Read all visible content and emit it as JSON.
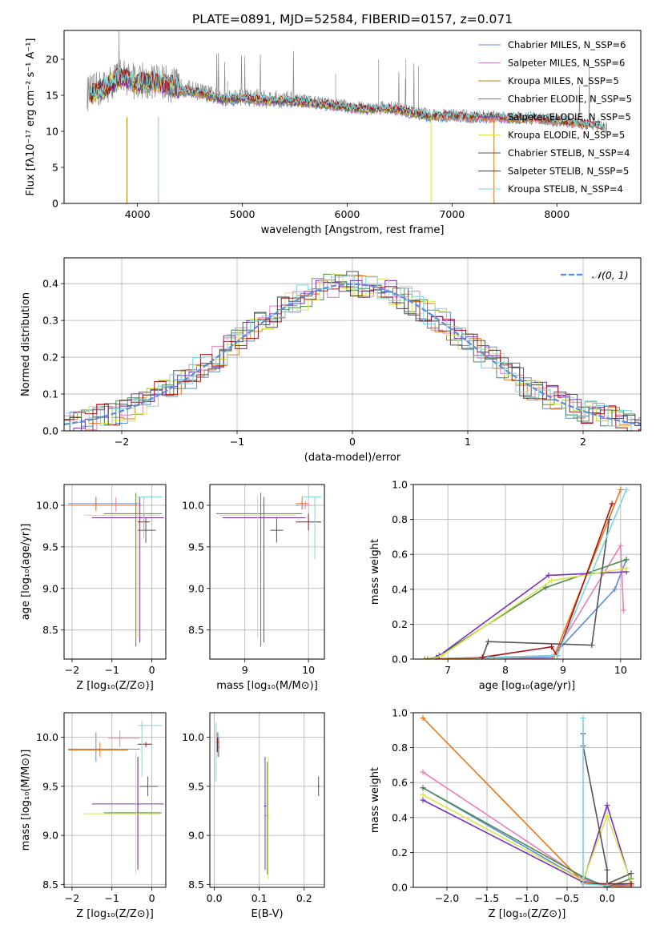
{
  "figure": {
    "title": "PLATE=0891, MJD=52584, FIBERID=0157, z=0.071"
  },
  "colors": {
    "chabrier_miles": "#5b8dd9",
    "salpeter_miles": "#e87fb7",
    "kroupa_miles": "#b8860b",
    "chabrier_elodie": "#4f8a4f",
    "salpeter_elodie": "#7b2fbf",
    "kroupa_elodie": "#d6e84a",
    "chabrier_stelib": "#555555",
    "salpeter_stelib": "#aa1111",
    "kroupa_stelib": "#7ad6dc",
    "orange": "#e8761a",
    "normal_curve": "#5b8dd9"
  },
  "chart_data": [
    {
      "id": "spectrum",
      "type": "line",
      "xlabel": "wavelength [Angstrom, rest frame]",
      "ylabel": "Flux [fλ10⁻¹⁷ erg cm⁻² s⁻¹ A⁻¹]",
      "xlim": [
        3300,
        8800
      ],
      "ylim": [
        0,
        24
      ],
      "xticks": [
        4000,
        5000,
        6000,
        7000,
        8000
      ],
      "yticks": [
        0,
        5,
        10,
        15,
        20
      ],
      "grid": false,
      "legend_placement": "top-right",
      "legend": [
        "Chabrier MILES, N_SSP=6",
        "Salpeter MILES, N_SSP=6",
        "Kroupa MILES, N_SSP=5",
        "Chabrier ELODIE, N_SSP=5",
        "Salpeter ELODIE, N_SSP=5",
        "Kroupa ELODIE, N_SSP=5",
        "Chabrier STELIB, N_SSP=4",
        "Salpeter STELIB, N_SSP=5",
        "Kroupa STELIB, N_SSP=4"
      ],
      "data_spectrum_envelope": {
        "x": [
          3550,
          3700,
          3850,
          4000,
          4200,
          4400,
          4600,
          4800,
          5000,
          5200,
          5400,
          5600,
          5800,
          6000,
          6200,
          6400,
          6600,
          6800,
          7000,
          7200,
          7400,
          7600,
          7800,
          8000,
          8200,
          8400,
          8500
        ],
        "y": [
          16.5,
          17.5,
          19.0,
          18.0,
          18.2,
          17.3,
          16.7,
          15.8,
          16.0,
          15.7,
          15.6,
          15.4,
          15.1,
          14.7,
          14.4,
          14.6,
          14.0,
          13.5,
          13.5,
          13.3,
          13.3,
          13.2,
          13.1,
          12.8,
          12.5,
          12.0,
          11.5
        ]
      }
    },
    {
      "id": "residual_histogram",
      "type": "line",
      "xlabel": "(data-model)/error",
      "ylabel": "Normed distribution",
      "xlim": [
        -2.5,
        2.5
      ],
      "ylim": [
        0,
        0.47
      ],
      "xticks": [
        -2,
        -1,
        0,
        1,
        2
      ],
      "yticks": [
        0.0,
        0.1,
        0.2,
        0.3,
        0.4
      ],
      "grid": true,
      "legend_placement": "top-right",
      "legend": [
        "𝒩(0, 1)"
      ],
      "normal_curve": {
        "mean": 0,
        "sigma": 1
      }
    },
    {
      "id": "age_vs_Z",
      "type": "scatter",
      "xlabel": "Z [log₁₀(Z/Z⊙)]",
      "ylabel": "age  [log₁₀(age/yr)]",
      "xlim": [
        -2.2,
        0.35
      ],
      "ylim": [
        8.15,
        10.25
      ],
      "xticks": [
        -2,
        -1,
        0
      ],
      "yticks": [
        8.5,
        9.0,
        9.5,
        10.0
      ],
      "grid": true
    },
    {
      "id": "age_vs_mass",
      "type": "scatter",
      "xlabel": "mass [log₁₀(M/M⊙)]",
      "ylabel": "",
      "xlim": [
        8.45,
        10.25
      ],
      "ylim": [
        8.15,
        10.25
      ],
      "xticks": [
        9,
        10
      ],
      "yticks": [
        8.5,
        9.0,
        9.5,
        10.0
      ],
      "grid": true
    },
    {
      "id": "mass_weight_vs_age",
      "type": "line",
      "xlabel": "age  [log₁₀(age/yr)]",
      "ylabel": "mass weight",
      "xlim": [
        6.4,
        10.35
      ],
      "ylim": [
        0,
        1.0
      ],
      "xticks": [
        7,
        8,
        9,
        10
      ],
      "yticks": [
        0.0,
        0.2,
        0.4,
        0.6,
        0.8,
        1.0
      ],
      "grid": true
    },
    {
      "id": "mass_vs_Z",
      "type": "scatter",
      "xlabel": "Z [log₁₀(Z/Z⊙)]",
      "ylabel": "mass [log₁₀(M/M⊙)]",
      "xlim": [
        -2.2,
        0.35
      ],
      "ylim": [
        8.47,
        10.25
      ],
      "xticks": [
        -2,
        -1,
        0
      ],
      "yticks": [
        8.5,
        9.0,
        9.5,
        10.0
      ],
      "grid": true
    },
    {
      "id": "mass_vs_ebv",
      "type": "scatter",
      "xlabel": "E(B-V)",
      "ylabel": "",
      "xlim": [
        -0.01,
        0.245
      ],
      "ylim": [
        8.47,
        10.25
      ],
      "xticks": [
        0.0,
        0.1,
        0.2
      ],
      "yticks": [
        8.5,
        9.0,
        9.5,
        10.0
      ],
      "grid": true
    },
    {
      "id": "mass_weight_vs_Z",
      "type": "line",
      "xlabel": "Z [log₁₀(Z/Z⊙)]",
      "ylabel": "mass weight",
      "xlim": [
        -2.42,
        0.42
      ],
      "ylim": [
        0,
        1.0
      ],
      "xticks": [
        -2.0,
        -1.5,
        -1.0,
        -0.5,
        0.0
      ],
      "yticks": [
        0.0,
        0.2,
        0.4,
        0.6,
        0.8,
        1.0
      ],
      "grid": true
    }
  ],
  "errorbars": {
    "age_vs_Z": [
      {
        "c": "chabrier_miles",
        "x": -1.4,
        "y": 10.02,
        "xl": -2.1,
        "xh": -0.3,
        "yl": 9.95,
        "yh": 10.1
      },
      {
        "c": "salpeter_miles",
        "x": -0.9,
        "y": 10.0,
        "xl": -1.6,
        "xh": -0.2,
        "yl": 9.92,
        "yh": 10.1
      },
      {
        "c": "orange",
        "x": -1.4,
        "y": 10.0,
        "xl": -2.1,
        "xh": -0.4,
        "yl": 9.93,
        "yh": 10.1
      },
      {
        "c": "chabrier_elodie",
        "x": -0.4,
        "y": 9.9,
        "xl": -1.2,
        "xh": 0.25,
        "yl": 8.3,
        "yh": 10.15
      },
      {
        "c": "salpeter_elodie",
        "x": -0.3,
        "y": 9.85,
        "xl": -1.5,
        "xh": 0.3,
        "yl": 8.35,
        "yh": 10.1
      },
      {
        "c": "kroupa_elodie",
        "x": -0.35,
        "y": 9.88,
        "xl": -1.7,
        "xh": 0.2,
        "yl": 8.4,
        "yh": 10.12
      },
      {
        "c": "chabrier_stelib",
        "x": -0.15,
        "y": 9.7,
        "xl": -0.35,
        "xh": 0.1,
        "yl": 9.55,
        "yh": 9.85
      },
      {
        "c": "salpeter_stelib",
        "x": -0.2,
        "y": 9.8,
        "xl": -0.35,
        "xh": -0.05,
        "yl": 9.7,
        "yh": 9.9
      },
      {
        "c": "kroupa_stelib",
        "x": -0.2,
        "y": 10.1,
        "xl": -0.35,
        "xh": 0.25,
        "yl": 9.6,
        "yh": 10.1
      }
    ],
    "age_vs_mass": [
      {
        "c": "chabrier_miles",
        "x": 9.9,
        "y": 10.0,
        "xl": 9.8,
        "xh": 10.0,
        "yl": 9.95,
        "yh": 10.05
      },
      {
        "c": "salpeter_miles",
        "x": 9.95,
        "y": 10.0,
        "xl": 9.85,
        "xh": 10.05,
        "yl": 9.95,
        "yh": 10.05
      },
      {
        "c": "orange",
        "x": 9.9,
        "y": 10.02,
        "xl": 9.8,
        "xh": 10.0,
        "yl": 9.95,
        "yh": 10.1
      },
      {
        "c": "chabrier_elodie",
        "x": 9.25,
        "y": 9.9,
        "xl": 8.55,
        "xh": 9.9,
        "yl": 8.3,
        "yh": 10.15
      },
      {
        "c": "salpeter_elodie",
        "x": 9.3,
        "y": 9.85,
        "xl": 8.65,
        "xh": 9.95,
        "yl": 8.35,
        "yh": 10.1
      },
      {
        "c": "kroupa_elodie",
        "x": 9.2,
        "y": 9.88,
        "xl": 8.6,
        "xh": 9.8,
        "yl": 8.4,
        "yh": 10.12
      },
      {
        "c": "chabrier_stelib",
        "x": 9.5,
        "y": 9.7,
        "xl": 9.4,
        "xh": 9.6,
        "yl": 9.55,
        "yh": 9.85
      },
      {
        "c": "salpeter_stelib",
        "x": 10.0,
        "y": 9.8,
        "xl": 9.8,
        "xh": 10.2,
        "yl": 9.7,
        "yh": 9.9
      },
      {
        "c": "kroupa_stelib",
        "x": 10.1,
        "y": 10.1,
        "xl": 9.9,
        "xh": 10.2,
        "yl": 9.35,
        "yh": 10.1
      }
    ],
    "mass_vs_Z": [
      {
        "c": "chabrier_miles",
        "x": -1.4,
        "y": 9.88,
        "xl": -2.1,
        "xh": -0.3,
        "yl": 9.75,
        "yh": 10.05
      },
      {
        "c": "salpeter_miles",
        "x": -0.8,
        "y": 9.99,
        "xl": -1.1,
        "xh": -0.3,
        "yl": 9.9,
        "yh": 10.07
      },
      {
        "c": "orange",
        "x": -1.3,
        "y": 9.87,
        "xl": -2.1,
        "xh": -0.6,
        "yl": 9.8,
        "yh": 9.95
      },
      {
        "c": "chabrier_elodie",
        "x": -0.35,
        "y": 9.23,
        "xl": -1.2,
        "xh": 0.25,
        "yl": 8.7,
        "yh": 9.8
      },
      {
        "c": "salpeter_elodie",
        "x": -0.35,
        "y": 9.32,
        "xl": -1.5,
        "xh": 0.3,
        "yl": 8.65,
        "yh": 9.8
      },
      {
        "c": "kroupa_elodie",
        "x": -0.4,
        "y": 9.22,
        "xl": -1.7,
        "xh": 0.2,
        "yl": 8.6,
        "yh": 9.85
      },
      {
        "c": "chabrier_stelib",
        "x": -0.1,
        "y": 9.5,
        "xl": -0.3,
        "xh": 0.15,
        "yl": 9.4,
        "yh": 9.6
      },
      {
        "c": "salpeter_stelib",
        "x": -0.15,
        "y": 9.93,
        "xl": -0.35,
        "xh": 0.0,
        "yl": 9.9,
        "yh": 9.95
      },
      {
        "c": "kroupa_stelib",
        "x": -0.25,
        "y": 10.12,
        "xl": -0.35,
        "xh": 0.25,
        "yl": 9.6,
        "yh": 10.17
      }
    ],
    "mass_vs_ebv": [
      {
        "c": "chabrier_miles",
        "x": 0.008,
        "y": 9.9,
        "xl": 0.004,
        "xh": 0.012,
        "yl": 9.8,
        "yh": 10.05
      },
      {
        "c": "salpeter_miles",
        "x": 0.006,
        "y": 9.95,
        "xl": 0.003,
        "xh": 0.01,
        "yl": 9.85,
        "yh": 10.05
      },
      {
        "c": "orange",
        "x": 0.01,
        "y": 9.9,
        "xl": 0.008,
        "xh": 0.012,
        "yl": 9.8,
        "yh": 10.0
      },
      {
        "c": "chabrier_elodie",
        "x": 0.118,
        "y": 9.2,
        "xl": 0.115,
        "xh": 0.12,
        "yl": 8.6,
        "yh": 9.75
      },
      {
        "c": "salpeter_elodie",
        "x": 0.113,
        "y": 9.3,
        "xl": 0.11,
        "xh": 0.116,
        "yl": 8.65,
        "yh": 9.8
      },
      {
        "c": "kroupa_elodie",
        "x": 0.12,
        "y": 9.2,
        "xl": 0.117,
        "xh": 0.123,
        "yl": 8.55,
        "yh": 9.8
      },
      {
        "c": "chabrier_stelib",
        "x": 0.232,
        "y": 9.5,
        "xl": 0.23,
        "xh": 0.234,
        "yl": 9.4,
        "yh": 9.6
      },
      {
        "c": "salpeter_stelib",
        "x": 0.007,
        "y": 9.95,
        "xl": 0.005,
        "xh": 0.009,
        "yl": 9.85,
        "yh": 10.0
      },
      {
        "c": "kroupa_stelib",
        "x": 0.004,
        "y": 9.9,
        "xl": 0.002,
        "xh": 0.006,
        "yl": 9.55,
        "yh": 10.15
      }
    ]
  },
  "weight_vs_age": [
    {
      "c": "chabrier_miles",
      "pts": [
        [
          6.6,
          0.0
        ],
        [
          7.6,
          0.01
        ],
        [
          8.8,
          0.01
        ],
        [
          9.9,
          0.4
        ],
        [
          10.1,
          0.57
        ]
      ]
    },
    {
      "c": "salpeter_miles",
      "pts": [
        [
          6.7,
          0.0
        ],
        [
          7.7,
          0.01
        ],
        [
          8.8,
          0.0
        ],
        [
          10.0,
          0.65
        ],
        [
          10.05,
          0.28
        ]
      ]
    },
    {
      "c": "orange",
      "pts": [
        [
          6.6,
          0.0
        ],
        [
          7.8,
          0.01
        ],
        [
          8.85,
          0.02
        ],
        [
          10.0,
          0.97
        ]
      ]
    },
    {
      "c": "chabrier_elodie",
      "pts": [
        [
          6.65,
          0.0
        ],
        [
          6.8,
          0.01
        ],
        [
          8.7,
          0.41
        ],
        [
          10.1,
          0.57
        ]
      ]
    },
    {
      "c": "salpeter_elodie",
      "pts": [
        [
          6.7,
          0.0
        ],
        [
          6.85,
          0.02
        ],
        [
          8.75,
          0.48
        ],
        [
          10.1,
          0.5
        ]
      ]
    },
    {
      "c": "kroupa_elodie",
      "pts": [
        [
          6.7,
          0.0
        ],
        [
          6.9,
          0.02
        ],
        [
          8.8,
          0.45
        ],
        [
          10.1,
          0.52
        ]
      ]
    },
    {
      "c": "chabrier_stelib",
      "pts": [
        [
          7.6,
          0.01
        ],
        [
          7.7,
          0.1
        ],
        [
          9.5,
          0.08
        ],
        [
          9.8,
          0.8
        ]
      ]
    },
    {
      "c": "salpeter_stelib",
      "pts": [
        [
          7.6,
          0.01
        ],
        [
          8.8,
          0.07
        ],
        [
          8.9,
          0.02
        ],
        [
          9.85,
          0.89
        ]
      ]
    },
    {
      "c": "kroupa_stelib",
      "pts": [
        [
          7.7,
          0.01
        ],
        [
          8.9,
          0.02
        ],
        [
          10.1,
          0.97
        ]
      ]
    }
  ],
  "weight_vs_Z": [
    {
      "c": "chabrier_miles",
      "pts": [
        [
          -2.3,
          0.57
        ],
        [
          -0.3,
          0.04
        ],
        [
          0.0,
          0.01
        ],
        [
          0.3,
          0.02
        ]
      ]
    },
    {
      "c": "salpeter_miles",
      "pts": [
        [
          -2.3,
          0.66
        ],
        [
          -0.3,
          0.05
        ],
        [
          0.0,
          0.01
        ],
        [
          0.3,
          0.0
        ]
      ]
    },
    {
      "c": "orange",
      "pts": [
        [
          -2.3,
          0.97
        ],
        [
          -0.3,
          0.03
        ],
        [
          0.0,
          0.01
        ],
        [
          0.3,
          0.01
        ]
      ]
    },
    {
      "c": "chabrier_elodie",
      "pts": [
        [
          -2.3,
          0.57
        ],
        [
          -0.3,
          0.06
        ],
        [
          0.0,
          0.0
        ],
        [
          0.3,
          0.05
        ]
      ]
    },
    {
      "c": "salpeter_elodie",
      "pts": [
        [
          -2.3,
          0.5
        ],
        [
          -0.3,
          0.03
        ],
        [
          0.0,
          0.47
        ],
        [
          0.3,
          0.02
        ]
      ]
    },
    {
      "c": "kroupa_elodie",
      "pts": [
        [
          -2.3,
          0.53
        ],
        [
          -0.3,
          0.04
        ],
        [
          0.0,
          0.41
        ],
        [
          0.3,
          0.03
        ]
      ]
    },
    {
      "c": "chabrier_stelib",
      "pts": [
        [
          -0.3,
          0.88
        ],
        [
          -0.3,
          0.81
        ],
        [
          0.0,
          0.1
        ],
        [
          0.0,
          0.02
        ],
        [
          0.3,
          0.08
        ]
      ]
    },
    {
      "c": "salpeter_stelib",
      "pts": [
        [
          -0.3,
          0.02
        ],
        [
          0.0,
          0.02
        ],
        [
          0.3,
          0.02
        ]
      ]
    },
    {
      "c": "kroupa_stelib",
      "pts": [
        [
          -0.3,
          0.97
        ],
        [
          -0.3,
          0.02
        ],
        [
          0.0,
          0.01
        ]
      ]
    }
  ]
}
